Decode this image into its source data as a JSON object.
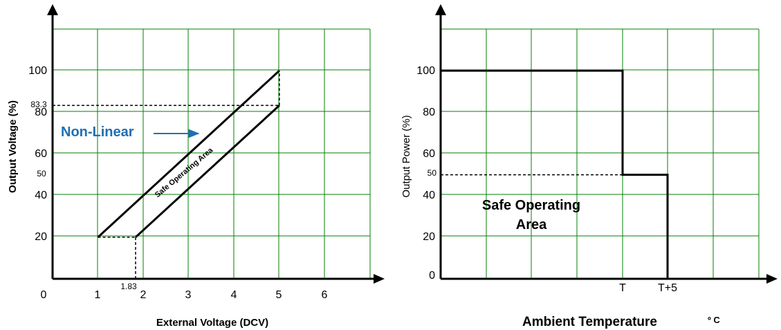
{
  "chart_data": [
    {
      "type": "line",
      "xlabel": "External Voltage (DCV)",
      "ylabel": "Output Voltage (%)",
      "x_ticks": [
        "0",
        "1",
        "2",
        "3",
        "4",
        "5",
        "6"
      ],
      "y_ticks": [
        "20",
        "40",
        "60",
        "80",
        "100"
      ],
      "xlim": [
        0,
        7
      ],
      "ylim": [
        0,
        120
      ],
      "grid": true,
      "annotations": {
        "special_y": [
          "83.3",
          "50"
        ],
        "special_x": [
          "1.83"
        ],
        "region_label": "Safe Operating Area",
        "arrow_label": "Non-Linear",
        "arrow_label_color": "#1F6FB2"
      },
      "series": [
        {
          "x": [
            1,
            5
          ],
          "y": [
            20,
            100
          ]
        },
        {
          "x": [
            1.83,
            5
          ],
          "y": [
            20,
            83.3
          ]
        }
      ],
      "boundary_segments": [
        {
          "x": [
            1,
            1.83
          ],
          "y": [
            20,
            20
          ]
        },
        {
          "x": [
            5,
            5
          ],
          "y": [
            83.3,
            100
          ]
        }
      ],
      "dashed_guides": [
        {
          "x": [
            0,
            5
          ],
          "y": [
            83.3,
            83.3
          ]
        },
        {
          "x": [
            1.83,
            1.83
          ],
          "y": [
            0,
            20
          ]
        }
      ]
    },
    {
      "type": "line",
      "xlabel": "Ambient Temperature",
      "xlabel_unit": "º C",
      "ylabel": "Output Power (%)",
      "x_ticks": [
        "T",
        "T+5"
      ],
      "y_ticks": [
        "0",
        "20",
        "40",
        "60",
        "80",
        "100"
      ],
      "ylim": [
        0,
        120
      ],
      "grid": true,
      "annotations": {
        "special_y": [
          "50"
        ],
        "region_label_line1": "Safe Operating",
        "region_label_line2": "Area"
      },
      "series": [
        {
          "x": [
            "start",
            "T",
            "T",
            "T+5",
            "T+5"
          ],
          "y": [
            100,
            100,
            50,
            50,
            0
          ]
        }
      ],
      "dashed_guides": [
        {
          "x": [
            "start",
            "T"
          ],
          "y": [
            50,
            50
          ]
        }
      ]
    }
  ]
}
